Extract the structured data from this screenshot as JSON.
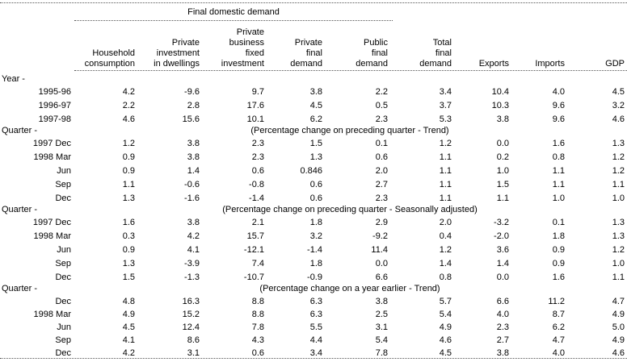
{
  "page": {
    "background_color": "#ffffff",
    "text_color": "#000000",
    "rule_color": "#555555"
  },
  "table": {
    "spanner_label": "Final domestic demand",
    "column_headers": [
      {
        "id": "household-consumption",
        "lines": [
          "Household",
          "consumption"
        ]
      },
      {
        "id": "private-investment-in-dwellings",
        "lines": [
          "Private",
          "investment",
          "in dwellings"
        ]
      },
      {
        "id": "private-business-fixed-investment",
        "lines": [
          "Private",
          "business",
          "fixed",
          "investment"
        ]
      },
      {
        "id": "private-final-demand",
        "lines": [
          "Private",
          "final",
          "demand"
        ]
      },
      {
        "id": "public-final-demand",
        "lines": [
          "Public",
          "final",
          "demand"
        ]
      },
      {
        "id": "total-final-demand",
        "lines": [
          "Total",
          "final",
          "demand"
        ]
      },
      {
        "id": "exports",
        "lines": [
          "Exports"
        ]
      },
      {
        "id": "imports",
        "lines": [
          "Imports"
        ]
      },
      {
        "id": "gdp",
        "lines": [
          "GDP"
        ]
      }
    ],
    "sections": [
      {
        "label": "Year -",
        "note": "",
        "rows": [
          {
            "label": "1995-96",
            "values": [
              "4.2",
              "-9.6",
              "9.7",
              "3.8",
              "2.2",
              "3.4",
              "10.4",
              "4.0",
              "4.5"
            ]
          },
          {
            "label": "1996-97",
            "values": [
              "2.2",
              "2.8",
              "17.6",
              "4.5",
              "0.5",
              "3.7",
              "10.3",
              "9.6",
              "3.2"
            ]
          },
          {
            "label": "1997-98",
            "values": [
              "4.6",
              "15.6",
              "10.1",
              "6.2",
              "2.3",
              "5.3",
              "3.8",
              "9.6",
              "4.6"
            ]
          }
        ]
      },
      {
        "label": "Quarter -",
        "note": "(Percentage change on preceding quarter - Trend)",
        "rows": [
          {
            "label": "1997 Dec",
            "values": [
              "1.2",
              "3.8",
              "2.3",
              "1.5",
              "0.1",
              "1.2",
              "0.0",
              "1.6",
              "1.3"
            ]
          },
          {
            "label": "1998 Mar",
            "values": [
              "0.9",
              "3.8",
              "2.3",
              "1.3",
              "0.6",
              "1.1",
              "0.2",
              "0.8",
              "1.2"
            ]
          },
          {
            "label": "Jun",
            "values": [
              "0.9",
              "1.4",
              "0.6",
              "0.846",
              "2.0",
              "1.1",
              "1.0",
              "1.1",
              "1.2"
            ]
          },
          {
            "label": "Sep",
            "values": [
              "1.1",
              "-0.6",
              "-0.8",
              "0.6",
              "2.7",
              "1.1",
              "1.5",
              "1.1",
              "1.1"
            ]
          },
          {
            "label": "Dec",
            "values": [
              "1.3",
              "-1.6",
              "-1.4",
              "0.6",
              "2.3",
              "1.1",
              "1.1",
              "1.0",
              "1.0"
            ]
          }
        ]
      },
      {
        "label": "Quarter -",
        "note": "(Percentage change on preceding quarter - Seasonally adjusted)",
        "rows": [
          {
            "label": "1997 Dec",
            "values": [
              "1.6",
              "3.8",
              "2.1",
              "1.8",
              "2.9",
              "2.0",
              "-3.2",
              "0.1",
              "1.3"
            ]
          },
          {
            "label": "1998 Mar",
            "values": [
              "0.3",
              "4.2",
              "15.7",
              "3.2",
              "-9.2",
              "0.4",
              "-2.0",
              "1.8",
              "1.3"
            ]
          },
          {
            "label": "Jun",
            "values": [
              "0.9",
              "4.1",
              "-12.1",
              "-1.4",
              "11.4",
              "1.2",
              "3.6",
              "0.9",
              "1.2"
            ]
          },
          {
            "label": "Sep",
            "values": [
              "1.3",
              "-3.9",
              "7.4",
              "1.8",
              "0.0",
              "1.4",
              "1.4",
              "0.9",
              "1.0"
            ]
          },
          {
            "label": "Dec",
            "values": [
              "1.5",
              "-1.3",
              "-10.7",
              "-0.9",
              "6.6",
              "0.8",
              "0.0",
              "1.6",
              "1.1"
            ]
          }
        ]
      },
      {
        "label": "Quarter -",
        "note": "(Percentage change on a year earlier - Trend)",
        "rows": [
          {
            "label": "Dec",
            "values": [
              "4.8",
              "16.3",
              "8.8",
              "6.3",
              "3.8",
              "5.7",
              "6.6",
              "11.2",
              "4.7"
            ]
          },
          {
            "label": "1998 Mar",
            "values": [
              "4.9",
              "15.2",
              "8.8",
              "6.3",
              "2.5",
              "5.4",
              "4.0",
              "8.7",
              "4.9"
            ]
          },
          {
            "label": "Jun",
            "values": [
              "4.5",
              "12.4",
              "7.8",
              "5.5",
              "3.1",
              "4.9",
              "2.3",
              "6.2",
              "5.0"
            ]
          },
          {
            "label": "Sep",
            "values": [
              "4.1",
              "8.6",
              "4.3",
              "4.4",
              "5.4",
              "4.6",
              "2.7",
              "4.7",
              "4.9"
            ]
          },
          {
            "label": "Dec",
            "values": [
              "4.2",
              "3.1",
              "0.6",
              "3.4",
              "7.8",
              "4.5",
              "3.8",
              "4.0",
              "4.6"
            ]
          }
        ]
      }
    ]
  }
}
